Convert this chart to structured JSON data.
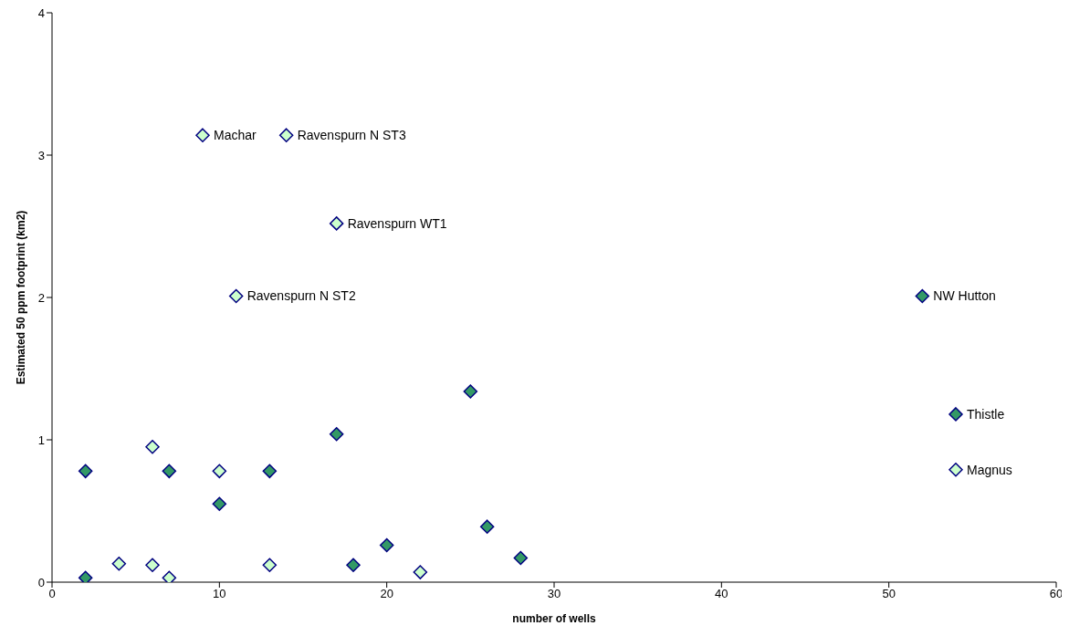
{
  "chart_data": {
    "type": "scatter",
    "xlabel": "number of wells",
    "ylabel": "Estimated 50 ppm footprint (km2)",
    "xlim": [
      0,
      60
    ],
    "xticks": [
      0,
      10,
      20,
      30,
      40,
      50,
      60
    ],
    "ylim": [
      0,
      4
    ],
    "yticks": [
      0,
      1,
      2,
      3,
      4
    ],
    "grid": false,
    "marker": "diamond",
    "series": [
      {
        "color": "#339966",
        "x": [
          2,
          2,
          7,
          10,
          13,
          17,
          18,
          20,
          25,
          26,
          28,
          52,
          54
        ],
        "values": [
          0.78,
          0.03,
          0.78,
          0.55,
          0.78,
          1.04,
          0.12,
          0.26,
          1.34,
          0.39,
          0.17,
          2.01,
          1.18
        ]
      },
      {
        "color": "#ccffcc",
        "x": [
          4,
          6,
          6,
          7,
          10,
          13,
          22,
          9,
          14,
          17,
          11,
          54
        ],
        "values": [
          0.13,
          0.95,
          0.12,
          0.03,
          0.78,
          0.12,
          0.07,
          3.14,
          3.14,
          2.52,
          2.01,
          0.79
        ]
      }
    ],
    "annotations": [
      {
        "text": "Machar",
        "x": 9,
        "y": 3.14
      },
      {
        "text": "Ravenspurn N ST3",
        "x": 14,
        "y": 3.14
      },
      {
        "text": "Ravenspurn WT1",
        "x": 17,
        "y": 2.52
      },
      {
        "text": "Ravenspurn N ST2",
        "x": 11,
        "y": 2.01
      },
      {
        "text": "NW Hutton",
        "x": 52,
        "y": 2.01
      },
      {
        "text": "Thistle",
        "x": 54,
        "y": 1.18
      },
      {
        "text": "Magnus",
        "x": 54,
        "y": 0.79
      }
    ]
  }
}
